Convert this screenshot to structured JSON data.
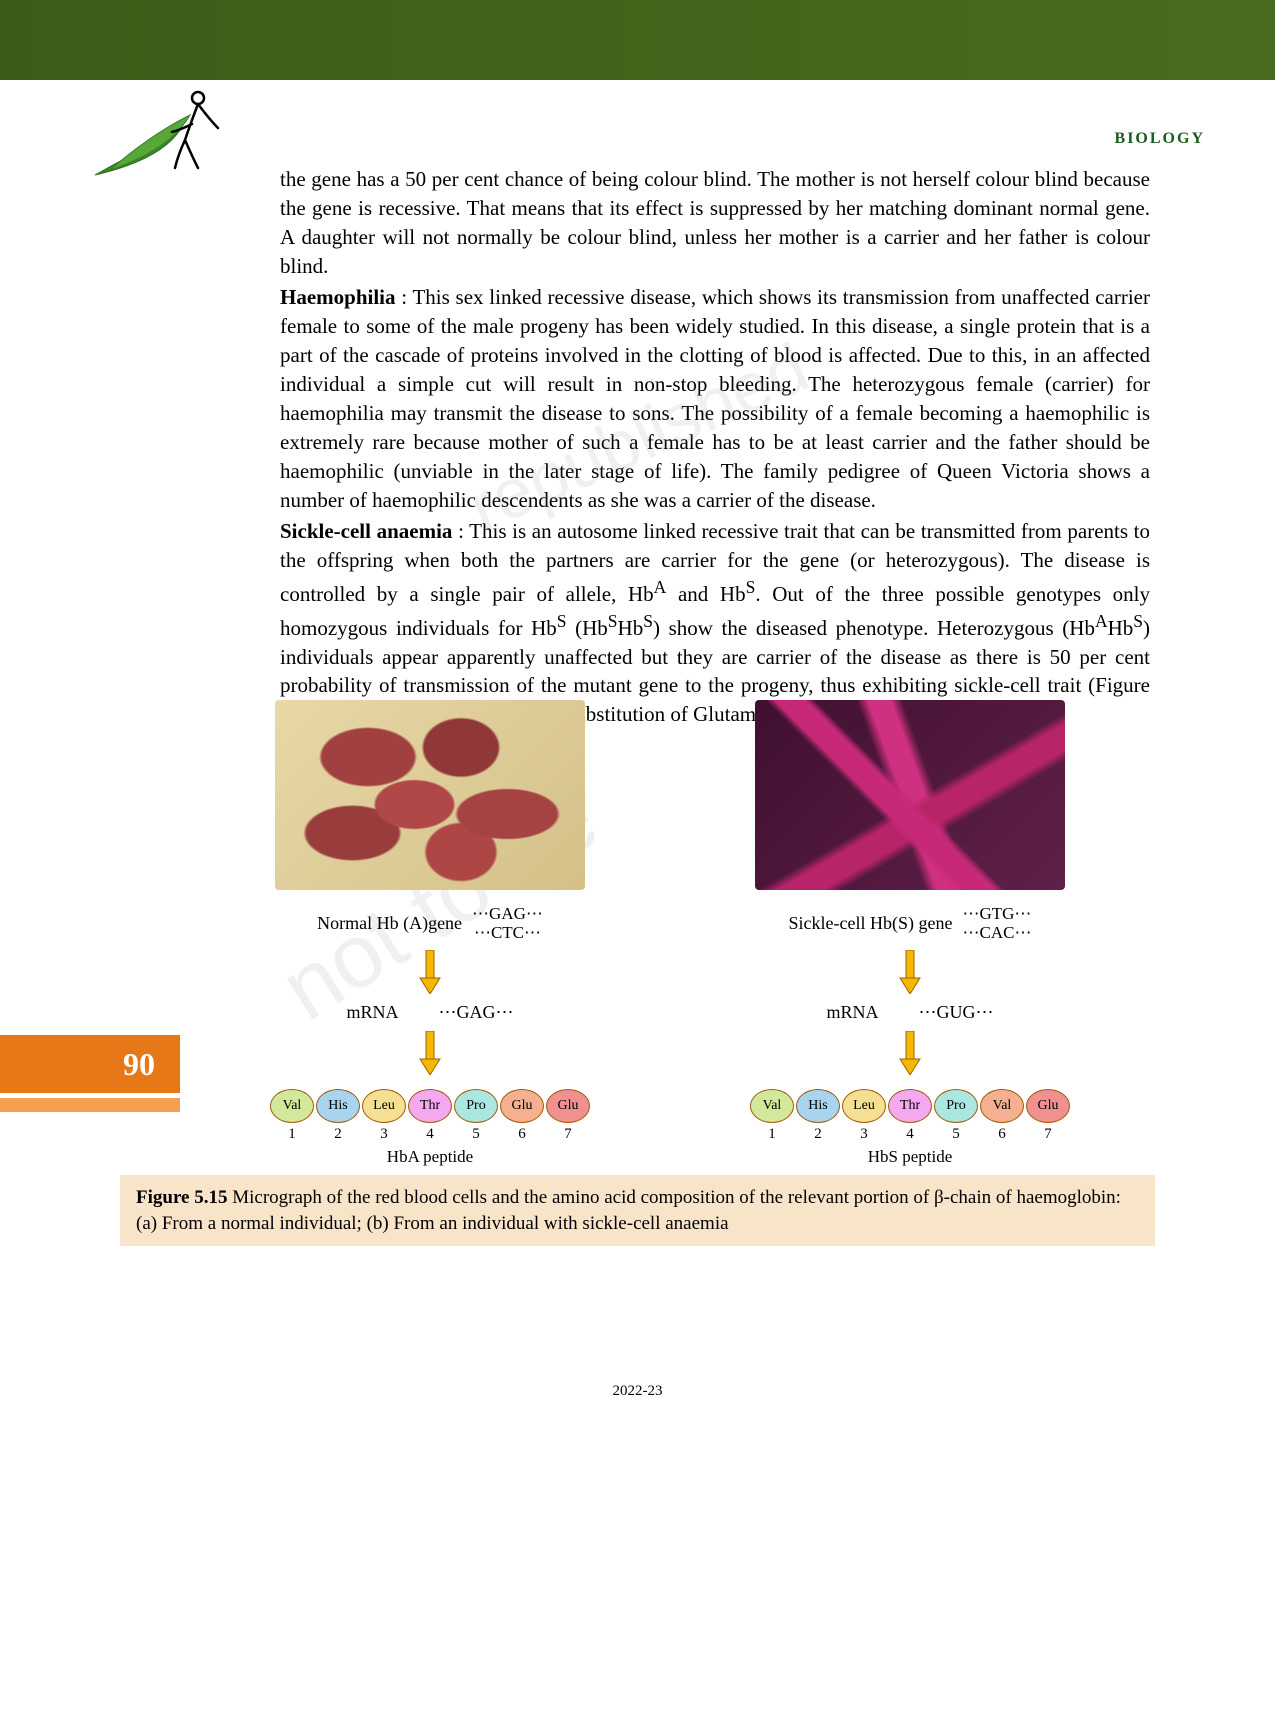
{
  "header": {
    "subject": "BIOLOGY",
    "page_number": "90",
    "footer_year": "2022-23"
  },
  "paragraphs": {
    "p1": "the gene has a 50 per cent chance of being colour blind. The mother is not herself colour blind because the gene is recessive. That means that its effect is suppressed by her matching dominant normal gene. A daughter will not normally be colour blind, unless her mother is a carrier and her father is colour blind.",
    "p2_lead": "Haemophilia",
    "p2": " : This sex linked recessive disease, which shows its transmission from unaffected carrier female to some of the male progeny has been widely studied. In this disease, a single protein that is a part of the cascade of proteins involved in the clotting of blood is affected. Due to this, in an affected individual a simple cut will result in non-stop bleeding. The heterozygous female (carrier) for haemophilia may transmit the disease to sons. The possibility of a female becoming a haemophilic is extremely rare because mother of such a female has to be at least carrier and the father should be haemophilic (unviable in the later stage of life). The family pedigree of Queen Victoria shows a number of haemophilic descendents as she was a carrier of the disease.",
    "p3_lead": "Sickle-cell anaemia",
    "p3a": " : This is an autosome linked recessive trait that can be transmitted from parents to the offspring when both the partners are carrier for the gene (or heterozygous). The disease is controlled by a single pair of allele, Hb",
    "p3b": " and Hb",
    "p3c": ". Out of the three possible genotypes only homozygous individuals for Hb",
    "p3d": " (Hb",
    "p3e": "Hb",
    "p3f": ") show the diseased phenotype. Heterozygous (Hb",
    "p3g": "Hb",
    "p3h": ") individuals appear apparently unaffected but they are carrier of the disease as there is 50 per cent probability of transmission of the mutant gene to the progeny, thus exhibiting sickle-cell trait (Figure 5.15). The defect is caused by the substitution of Glutamic acid"
  },
  "figure": {
    "normal": {
      "gene_label": "Normal Hb (A)gene",
      "dna_top": "⋯GAG⋯",
      "dna_bot": "⋯CTC⋯",
      "mrna_label": "mRNA",
      "mrna_codon": "⋯GAG⋯",
      "peptide_name": "HbA peptide",
      "amino_acids": [
        {
          "label": "Val",
          "num": "1",
          "fill": "#d4e89c"
        },
        {
          "label": "His",
          "num": "2",
          "fill": "#a8d4f0"
        },
        {
          "label": "Leu",
          "num": "3",
          "fill": "#f4e090"
        },
        {
          "label": "Thr",
          "num": "4",
          "fill": "#f4a8f0"
        },
        {
          "label": "Pro",
          "num": "5",
          "fill": "#a8e8e0"
        },
        {
          "label": "Glu",
          "num": "6",
          "fill": "#f4b090"
        },
        {
          "label": "Glu",
          "num": "7",
          "fill": "#f09090"
        }
      ]
    },
    "sickle": {
      "gene_label": "Sickle-cell Hb(S) gene",
      "dna_top": "⋯GTG⋯",
      "dna_bot": "⋯CAC⋯",
      "mrna_label": "mRNA",
      "mrna_codon": "⋯GUG⋯",
      "peptide_name": "HbS peptide",
      "amino_acids": [
        {
          "label": "Val",
          "num": "1",
          "fill": "#d4e89c"
        },
        {
          "label": "His",
          "num": "2",
          "fill": "#a8d4f0"
        },
        {
          "label": "Leu",
          "num": "3",
          "fill": "#f4e090"
        },
        {
          "label": "Thr",
          "num": "4",
          "fill": "#f4a8f0"
        },
        {
          "label": "Pro",
          "num": "5",
          "fill": "#a8e8e0"
        },
        {
          "label": "Val",
          "num": "6",
          "fill": "#f4b090"
        },
        {
          "label": "Glu",
          "num": "7",
          "fill": "#f09090"
        }
      ]
    },
    "arrow_color": "#f4b800",
    "arrow_stroke": "#a06000"
  },
  "caption": {
    "lead": "Figure 5.15",
    "text": " Micrograph of the red blood cells and the amino acid composition of the relevant portion of β-chain of haemoglobin: (a) From a normal individual; (b) From an individual with sickle-cell anaemia"
  },
  "watermark": {
    "line1": "not to be",
    "line2": "republished"
  }
}
